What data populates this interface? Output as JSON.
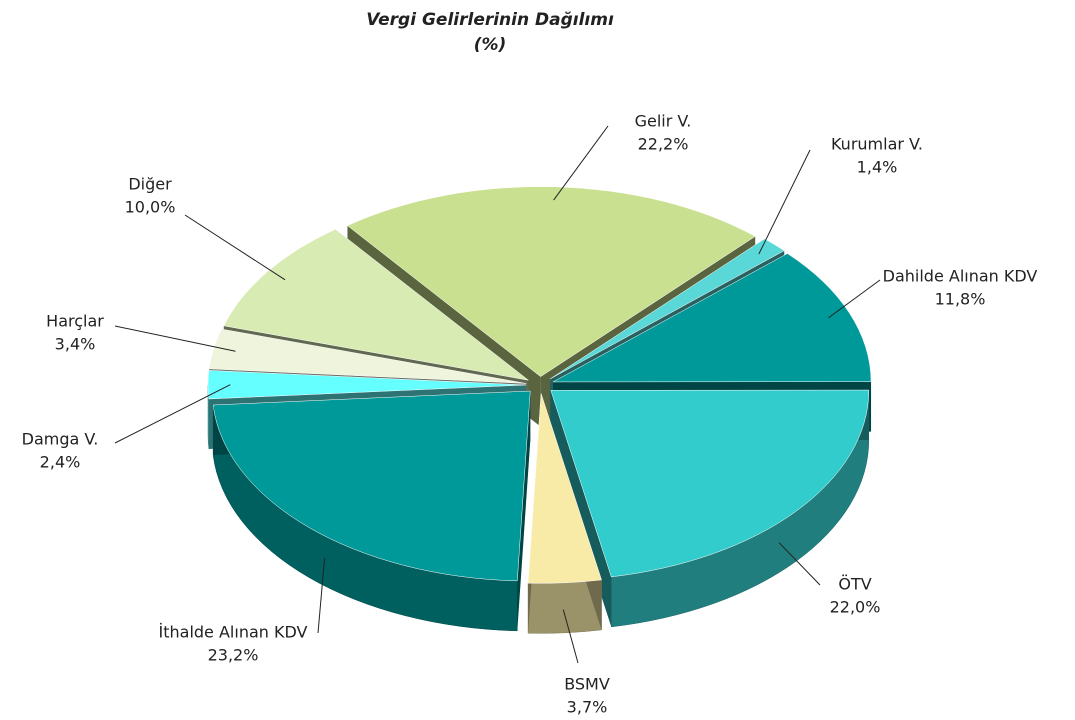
{
  "chart_data": {
    "type": "pie",
    "title": "Vergi Gelirlerinin Dağılımı",
    "subtitle": "(%)",
    "categories": [
      "Gelir V.",
      "Kurumlar V.",
      "Dahilde Alınan KDV",
      "ÖTV",
      "BSMV",
      "İthalde Alınan KDV",
      "Damga V.",
      "Harçlar",
      "Diğer"
    ],
    "values": [
      22.2,
      1.4,
      11.8,
      22.0,
      3.7,
      23.2,
      2.4,
      3.4,
      10.0
    ],
    "value_labels": [
      "22,2%",
      "1,4%",
      "11,8%",
      "22,0%",
      "3,7%",
      "23,2%",
      "2,4%",
      "3,4%",
      "10,0%"
    ],
    "colors": [
      "#c8e08f",
      "#5ad8d8",
      "#009999",
      "#33cccc",
      "#f8eba8",
      "#009999",
      "#66ffff",
      "#eef5dc",
      "#d8ebb3"
    ]
  }
}
